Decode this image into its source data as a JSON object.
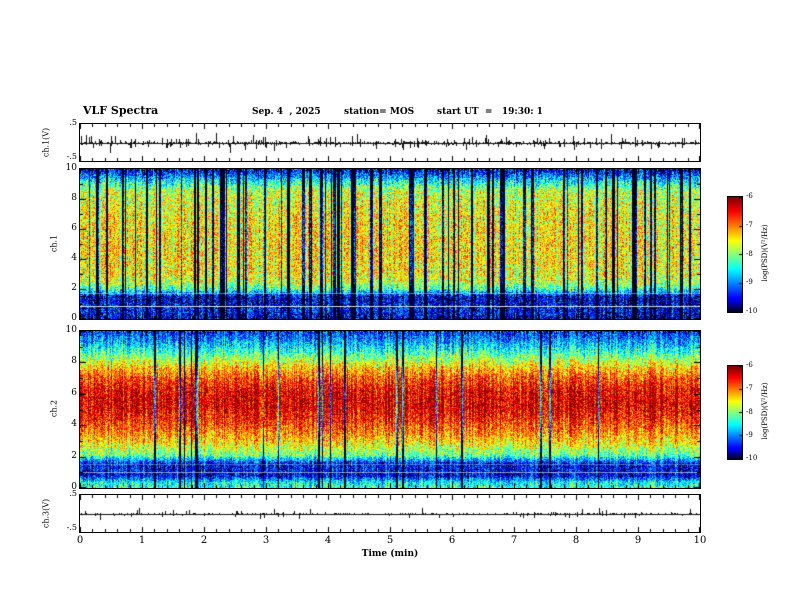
{
  "title": "VLF Spectra",
  "header": {
    "date": "Sep. 4  , 2025",
    "station": "station= MOS",
    "start_ut": "start UT  =   19:30: 1"
  },
  "x_axis": {
    "label": "Time (min)",
    "ticks": [
      "0",
      "1",
      "2",
      "3",
      "4",
      "5",
      "6",
      "7",
      "8",
      "9",
      "10"
    ],
    "range": [
      0,
      10
    ]
  },
  "panels": {
    "ch1_wave": {
      "label": "ch.1(V)",
      "y_tick_top": ".5",
      "y_tick_bottom": "-.5"
    },
    "ch1_spec": {
      "label_channel": "ch.1",
      "label_axis": "Frequency (kHz)",
      "y_ticks": [
        "10",
        "8",
        "6",
        "4",
        "2",
        "0"
      ]
    },
    "ch2_spec": {
      "label_channel": "ch.2",
      "label_axis": "Frequency (kHz)",
      "y_ticks": [
        "10",
        "8",
        "6",
        "4",
        "2",
        "0"
      ]
    },
    "ch3_wave": {
      "label": "ch.3(V)",
      "y_tick_top": ".5",
      "y_tick_bottom": "-.5"
    }
  },
  "colorbars": [
    {
      "label": "log(PSD)(V²/Hz)",
      "ticks": [
        "-6",
        "-7",
        "-8",
        "-9",
        "-10"
      ],
      "range": [
        -10,
        -6
      ]
    },
    {
      "label": "log(PSD)(V²/Hz)",
      "ticks": [
        "-6",
        "-7",
        "-8",
        "-9",
        "-10"
      ],
      "range": [
        -10,
        -6
      ]
    }
  ],
  "chart_data": [
    {
      "type": "line",
      "name": "ch.1 voltage waveform",
      "xlabel": "Time (min)",
      "xlim": [
        0,
        10
      ],
      "ylabel": "ch.1(V)",
      "ylim": [
        -0.5,
        0.5
      ],
      "summary": "impulsive broadband noise trace centered on 0 V with dense small spikes",
      "render": {
        "seed": 11,
        "base_amp": 2.2,
        "spike_prob": 0.3,
        "spike_amp": 9
      }
    },
    {
      "type": "heatmap",
      "name": "ch.1 spectrogram",
      "xlabel": "Time (min)",
      "xlim": [
        0,
        10
      ],
      "ylabel": "Frequency (kHz)",
      "ylim": [
        0,
        10
      ],
      "zlabel": "log(PSD)(V²/Hz)",
      "zlim": [
        -10,
        -6
      ],
      "colormap": "jet",
      "freq_profile": [
        [
          0,
          -9.6
        ],
        [
          0.7,
          -9.4
        ],
        [
          1.5,
          -9.6
        ],
        [
          2.0,
          -8.3
        ],
        [
          2.5,
          -7.7
        ],
        [
          3,
          -7.5
        ],
        [
          5,
          -7.4
        ],
        [
          7,
          -7.5
        ],
        [
          8.5,
          -7.7
        ],
        [
          9.2,
          -8.5
        ],
        [
          9.7,
          -9.2
        ],
        [
          10,
          -9.5
        ]
      ],
      "spectral_lines_khz": [
        0.9,
        1.75
      ],
      "summary": "green broadband band 2-9 kHz with many narrow black vertical dropouts, dark band below 2 kHz with two bright horizontal lines",
      "render": {
        "seed": 21,
        "noise": 1.4,
        "col_jitter": 0.7,
        "stripe_prob": 0.12,
        "stripe_max": 3,
        "stripe_depth": 2.6,
        "line_alphas": [
          0.85,
          0.45
        ]
      }
    },
    {
      "type": "heatmap",
      "name": "ch.2 spectrogram",
      "xlabel": "Time (min)",
      "xlim": [
        0,
        10
      ],
      "ylabel": "Frequency (kHz)",
      "ylim": [
        0,
        10
      ],
      "zlabel": "log(PSD)(V²/Hz)",
      "zlim": [
        -10,
        -6
      ],
      "colormap": "jet",
      "freq_profile": [
        [
          0,
          -8.3
        ],
        [
          0.4,
          -8.5
        ],
        [
          0.8,
          -9.5
        ],
        [
          1.6,
          -9.4
        ],
        [
          2.1,
          -8.1
        ],
        [
          2.8,
          -7.5
        ],
        [
          3.6,
          -7.0
        ],
        [
          4.4,
          -6.6
        ],
        [
          5.2,
          -6.35
        ],
        [
          6.2,
          -6.4
        ],
        [
          7.0,
          -6.8
        ],
        [
          7.8,
          -7.4
        ],
        [
          8.6,
          -8.2
        ],
        [
          9.4,
          -8.9
        ],
        [
          10,
          -9.3
        ]
      ],
      "spectral_lines_khz": [
        1.0,
        1.5
      ],
      "summary": "intense red-orange band 4.5-7 kHz grading to green then blue toward 10 kHz, dark band 0.8-1.8 kHz, sparse black vertical dropouts",
      "render": {
        "seed": 31,
        "noise": 1.2,
        "col_jitter": 0.8,
        "stripe_prob": 0.035,
        "stripe_max": 2,
        "stripe_depth": 2.8,
        "line_alphas": [
          0.55,
          0.3
        ]
      }
    },
    {
      "type": "line",
      "name": "ch.3 voltage waveform",
      "xlabel": "Time (min)",
      "xlim": [
        0,
        10
      ],
      "ylabel": "ch.3(V)",
      "ylim": [
        -0.5,
        0.5
      ],
      "summary": "mostly flat trace at 0 V with sparse small spikes",
      "render": {
        "seed": 41,
        "base_amp": 1.2,
        "spike_prob": 0.12,
        "spike_amp": 6
      }
    }
  ]
}
